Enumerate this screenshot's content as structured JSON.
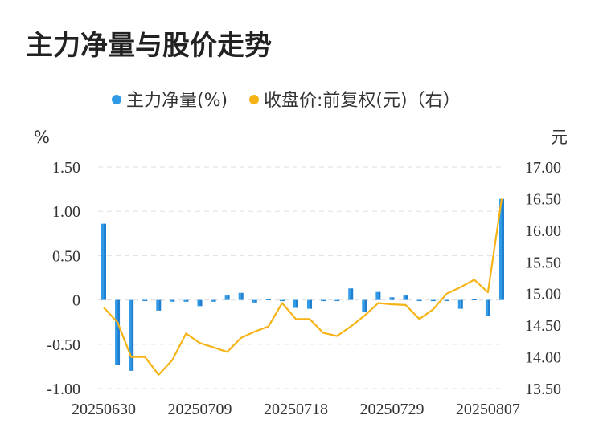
{
  "chart_data": {
    "type": "bar",
    "title": "主力净量与股价走势",
    "y_left_unit": "%",
    "y_right_unit": "元",
    "y_left_ticks": [
      "1.50",
      "1.00",
      "0.50",
      "0",
      "-0.50",
      "-1.00"
    ],
    "y_right_ticks": [
      "17.00",
      "16.50",
      "16.00",
      "15.50",
      "15.00",
      "14.50",
      "14.00",
      "13.50"
    ],
    "ylim_left": [
      -1.0,
      1.5
    ],
    "ylim_right": [
      13.5,
      17.0
    ],
    "x_tick_labels": [
      "20250630",
      "20250709",
      "20250718",
      "20250729",
      "20250807"
    ],
    "grid": true,
    "legend_position": "top",
    "colors": {
      "bar": "#2f9be6",
      "bar_dark": "#1f7fd0",
      "line": "#f5b316"
    },
    "series": [
      {
        "name": "主力净量(%)",
        "kind": "bar",
        "axis": "left",
        "values": [
          0.86,
          -0.73,
          -0.8,
          -0.01,
          -0.12,
          -0.02,
          -0.02,
          -0.07,
          -0.02,
          0.05,
          0.08,
          -0.03,
          0.01,
          -0.01,
          -0.09,
          -0.1,
          -0.01,
          -0.01,
          0.13,
          -0.14,
          0.09,
          0.03,
          0.05,
          -0.01,
          -0.01,
          -0.01,
          -0.1,
          0.01,
          -0.18,
          1.14
        ]
      },
      {
        "name": "收盘价:前复权(元)（右）",
        "kind": "line",
        "axis": "right",
        "values": [
          14.78,
          14.55,
          14.0,
          14.0,
          13.72,
          13.95,
          14.37,
          14.22,
          14.15,
          14.08,
          14.3,
          14.4,
          14.48,
          14.85,
          14.6,
          14.6,
          14.38,
          14.33,
          14.48,
          14.65,
          14.85,
          14.83,
          14.82,
          14.6,
          14.75,
          15.0,
          15.1,
          15.22,
          15.02,
          16.5
        ]
      }
    ]
  }
}
